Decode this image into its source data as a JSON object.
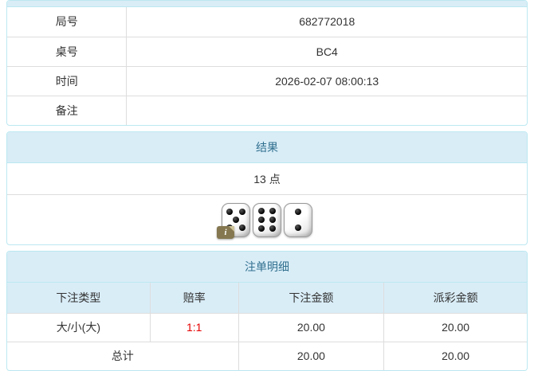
{
  "colors": {
    "panel_border": "#bce8f1",
    "header_bg": "#d9edf7",
    "header_text": "#31708f",
    "cell_border": "#dddddd",
    "text": "#333333",
    "odds_red": "#e60000"
  },
  "info_table": {
    "rows": [
      {
        "label": "局号",
        "value": "682772018"
      },
      {
        "label": "桌号",
        "value": "BC4"
      },
      {
        "label": "时间",
        "value": "2026-02-07 08:00:13"
      },
      {
        "label": "备注",
        "value": ""
      }
    ]
  },
  "result_panel": {
    "title": "结果",
    "points": "13 点",
    "dice": [
      5,
      6,
      2
    ],
    "info_badge": "i"
  },
  "bets_panel": {
    "title": "注单明细",
    "columns": [
      "下注类型",
      "赔率",
      "下注金额",
      "派彩金额"
    ],
    "rows": [
      {
        "type": "大/小(大)",
        "odds": "1:1",
        "bet": "20.00",
        "payout": "20.00"
      }
    ],
    "total": {
      "label": "总计",
      "bet": "20.00",
      "payout": "20.00"
    }
  }
}
